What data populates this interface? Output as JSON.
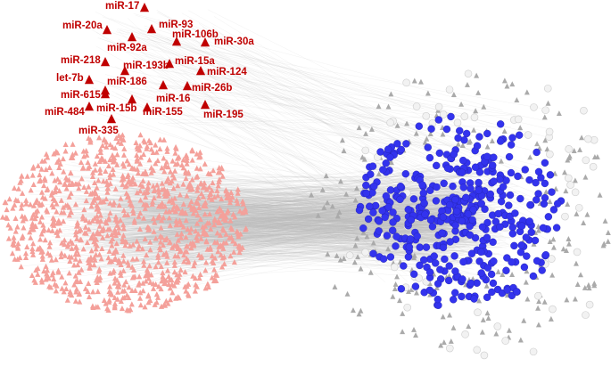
{
  "nodes": [
    {
      "label": "miR-17"
    },
    {
      "label": "miR-20a"
    },
    {
      "label": "miR-93"
    },
    {
      "label": "miR-106b"
    },
    {
      "label": "miR-30a"
    },
    {
      "label": "miR-92a"
    },
    {
      "label": "miR-218"
    },
    {
      "label": "miR-193b"
    },
    {
      "label": "miR-15a"
    },
    {
      "label": "miR-124"
    },
    {
      "label": "let-7b"
    },
    {
      "label": "miR-186"
    },
    {
      "label": "miR-26b"
    },
    {
      "label": "miR-615"
    },
    {
      "label": "miR-16"
    },
    {
      "label": "miR-484"
    },
    {
      "label": "miR-15b"
    },
    {
      "label": "miR-155"
    },
    {
      "label": "miR-195"
    },
    {
      "label": "miR-335"
    }
  ]
}
